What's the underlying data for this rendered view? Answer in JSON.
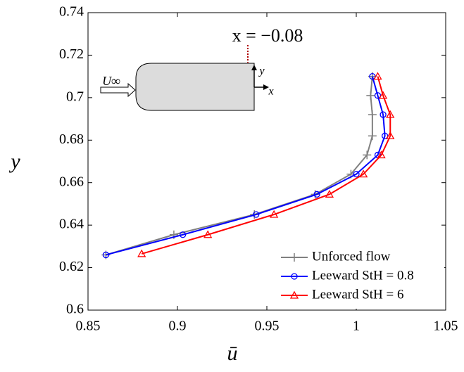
{
  "chart_data": {
    "type": "line",
    "xlabel": "ū",
    "ylabel": "y",
    "annotations": [
      "x = −0.08",
      "U∞",
      "y",
      "x"
    ],
    "xlim": [
      0.85,
      1.05
    ],
    "xticks": [
      0.85,
      0.9,
      0.95,
      1,
      1.05
    ],
    "ylim": [
      0.6,
      0.74
    ],
    "yticks": [
      0.6,
      0.62,
      0.64,
      0.66,
      0.68,
      0.7,
      0.72,
      0.74
    ],
    "legend": "lower right",
    "series": [
      {
        "name": "Unforced flow",
        "color": "#808080",
        "marker": "plus",
        "x": [
          0.86,
          0.898,
          0.943,
          0.977,
          0.997,
          1.006,
          1.009,
          1.009,
          1.008,
          1.009
        ],
        "values": [
          0.626,
          0.6355,
          0.645,
          0.6545,
          0.664,
          0.673,
          0.682,
          0.692,
          0.701,
          0.71
        ]
      },
      {
        "name": "Leeward StH = 0.8",
        "color": "#0000ff",
        "marker": "circle",
        "x": [
          0.86,
          0.903,
          0.944,
          0.978,
          1.0,
          1.012,
          1.016,
          1.015,
          1.012,
          1.009
        ],
        "values": [
          0.626,
          0.6355,
          0.645,
          0.6545,
          0.664,
          0.673,
          0.682,
          0.692,
          0.701,
          0.71
        ]
      },
      {
        "name": "Leeward StH = 6",
        "color": "#ff0000",
        "marker": "triangle",
        "x": [
          0.88,
          0.917,
          0.954,
          0.985,
          1.004,
          1.014,
          1.019,
          1.019,
          1.015,
          1.012
        ],
        "values": [
          0.6265,
          0.6355,
          0.645,
          0.6545,
          0.664,
          0.673,
          0.682,
          0.692,
          0.701,
          0.71
        ]
      }
    ]
  }
}
